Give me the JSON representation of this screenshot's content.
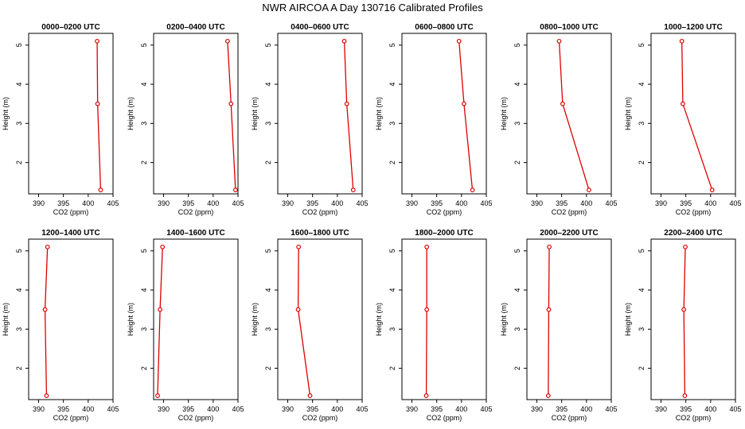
{
  "chart_title": "NWR AIRCOA A  Day 130716  Calibrated Profiles",
  "series_color": "#dd0000",
  "chart_data": [
    {
      "type": "line",
      "title": "0000–0200 UTC",
      "xlabel": "CO2 (ppm)",
      "ylabel": "Height (m)",
      "xlim": [
        388,
        405
      ],
      "ylim": [
        1.2,
        5.3
      ],
      "xticks": [
        390,
        395,
        400,
        405
      ],
      "yticks": [
        2,
        3,
        4,
        5
      ],
      "x": [
        402.5,
        401.9,
        401.8
      ],
      "y": [
        1.3,
        3.5,
        5.1
      ]
    },
    {
      "type": "line",
      "title": "0200–0400 UTC",
      "xlabel": "CO2 (ppm)",
      "ylabel": "Height (m)",
      "xlim": [
        388,
        405
      ],
      "ylim": [
        1.2,
        5.3
      ],
      "xticks": [
        390,
        395,
        400,
        405
      ],
      "yticks": [
        2,
        3,
        4,
        5
      ],
      "x": [
        404.5,
        403.6,
        402.9
      ],
      "y": [
        1.3,
        3.5,
        5.1
      ]
    },
    {
      "type": "line",
      "title": "0400–0600 UTC",
      "xlabel": "CO2 (ppm)",
      "ylabel": "Height (m)",
      "xlim": [
        388,
        405
      ],
      "ylim": [
        1.2,
        5.3
      ],
      "xticks": [
        390,
        395,
        400,
        405
      ],
      "yticks": [
        2,
        3,
        4,
        5
      ],
      "x": [
        403.2,
        401.9,
        401.4
      ],
      "y": [
        1.3,
        3.5,
        5.1
      ]
    },
    {
      "type": "line",
      "title": "0600–0800 UTC",
      "xlabel": "CO2 (ppm)",
      "ylabel": "Height (m)",
      "xlim": [
        388,
        405
      ],
      "ylim": [
        1.2,
        5.3
      ],
      "xticks": [
        390,
        395,
        400,
        405
      ],
      "yticks": [
        2,
        3,
        4,
        5
      ],
      "x": [
        402.2,
        400.5,
        399.5
      ],
      "y": [
        1.3,
        3.5,
        5.1
      ]
    },
    {
      "type": "line",
      "title": "0800–1000 UTC",
      "xlabel": "CO2 (ppm)",
      "ylabel": "Height (m)",
      "xlim": [
        388,
        405
      ],
      "ylim": [
        1.2,
        5.3
      ],
      "xticks": [
        390,
        395,
        400,
        405
      ],
      "yticks": [
        2,
        3,
        4,
        5
      ],
      "x": [
        400.5,
        395.2,
        394.5
      ],
      "y": [
        1.3,
        3.5,
        5.1
      ]
    },
    {
      "type": "line",
      "title": "1000–1200 UTC",
      "xlabel": "CO2 (ppm)",
      "ylabel": "Height (m)",
      "xlim": [
        388,
        405
      ],
      "ylim": [
        1.2,
        5.3
      ],
      "xticks": [
        390,
        395,
        400,
        405
      ],
      "yticks": [
        2,
        3,
        4,
        5
      ],
      "x": [
        400.3,
        394.4,
        394.2
      ],
      "y": [
        1.3,
        3.5,
        5.1
      ]
    },
    {
      "type": "line",
      "title": "1200–1400 UTC",
      "xlabel": "CO2 (ppm)",
      "ylabel": "Height (m)",
      "xlim": [
        388,
        405
      ],
      "ylim": [
        1.2,
        5.3
      ],
      "xticks": [
        390,
        395,
        400,
        405
      ],
      "yticks": [
        2,
        3,
        4,
        5
      ],
      "x": [
        391.6,
        391.3,
        391.8
      ],
      "y": [
        1.3,
        3.5,
        5.1
      ]
    },
    {
      "type": "line",
      "title": "1400–1600 UTC",
      "xlabel": "CO2 (ppm)",
      "ylabel": "Height (m)",
      "xlim": [
        388,
        405
      ],
      "ylim": [
        1.2,
        5.3
      ],
      "xticks": [
        390,
        395,
        400,
        405
      ],
      "yticks": [
        2,
        3,
        4,
        5
      ],
      "x": [
        388.8,
        389.3,
        389.8
      ],
      "y": [
        1.3,
        3.5,
        5.1
      ]
    },
    {
      "type": "line",
      "title": "1600–1800 UTC",
      "xlabel": "CO2 (ppm)",
      "ylabel": "Height (m)",
      "xlim": [
        388,
        405
      ],
      "ylim": [
        1.2,
        5.3
      ],
      "xticks": [
        390,
        395,
        400,
        405
      ],
      "yticks": [
        2,
        3,
        4,
        5
      ],
      "x": [
        394.5,
        392.1,
        392.2
      ],
      "y": [
        1.3,
        3.5,
        5.1
      ]
    },
    {
      "type": "line",
      "title": "1800–2000 UTC",
      "xlabel": "CO2 (ppm)",
      "ylabel": "Height (m)",
      "xlim": [
        388,
        405
      ],
      "ylim": [
        1.2,
        5.3
      ],
      "xticks": [
        390,
        395,
        400,
        405
      ],
      "yticks": [
        2,
        3,
        4,
        5
      ],
      "x": [
        392.9,
        393.0,
        393.0
      ],
      "y": [
        1.3,
        3.5,
        5.1
      ]
    },
    {
      "type": "line",
      "title": "2000–2200 UTC",
      "xlabel": "CO2 (ppm)",
      "ylabel": "Height (m)",
      "xlim": [
        388,
        405
      ],
      "ylim": [
        1.2,
        5.3
      ],
      "xticks": [
        390,
        395,
        400,
        405
      ],
      "yticks": [
        2,
        3,
        4,
        5
      ],
      "x": [
        392.3,
        392.4,
        392.5
      ],
      "y": [
        1.3,
        3.5,
        5.1
      ]
    },
    {
      "type": "line",
      "title": "2200–2400 UTC",
      "xlabel": "CO2 (ppm)",
      "ylabel": "Height (m)",
      "xlim": [
        388,
        405
      ],
      "ylim": [
        1.2,
        5.3
      ],
      "xticks": [
        390,
        395,
        400,
        405
      ],
      "yticks": [
        2,
        3,
        4,
        5
      ],
      "x": [
        394.8,
        394.6,
        394.9
      ],
      "y": [
        1.3,
        3.5,
        5.1
      ]
    }
  ]
}
